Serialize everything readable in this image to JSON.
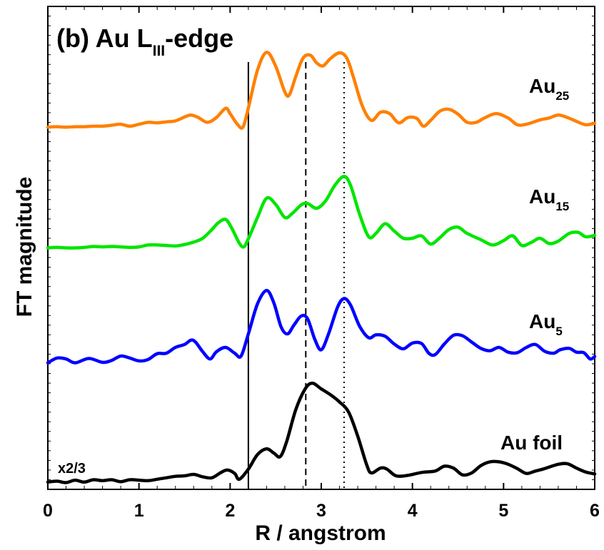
{
  "chart_data": {
    "type": "line",
    "title": {
      "main": "(b) Au L",
      "sub": "III",
      "tail": "-edge"
    },
    "xlabel": "R / angstrom",
    "ylabel": "FT magnitude",
    "xlim": [
      0,
      6
    ],
    "ylim": [
      0,
      1
    ],
    "x_ticks": [
      "0",
      "1",
      "2",
      "3",
      "4",
      "5",
      "6"
    ],
    "y_ticks_labeled": false,
    "grid": false,
    "legend": "none (series labeled on the right)",
    "reference_lines": [
      {
        "x": 2.2,
        "style": "solid"
      },
      {
        "x": 2.83,
        "style": "dashed"
      },
      {
        "x": 3.25,
        "style": "dotted"
      }
    ],
    "series": [
      {
        "name": "Au25",
        "label_main": "Au",
        "label_sub": "25",
        "color": "#ff8000",
        "points": [
          [
            0,
            0.75
          ],
          [
            0.1,
            0.751
          ],
          [
            0.2,
            0.75
          ],
          [
            0.3,
            0.751
          ],
          [
            0.4,
            0.751
          ],
          [
            0.5,
            0.752
          ],
          [
            0.6,
            0.752
          ],
          [
            0.7,
            0.754
          ],
          [
            0.8,
            0.756
          ],
          [
            0.9,
            0.752
          ],
          [
            1.0,
            0.756
          ],
          [
            1.1,
            0.76
          ],
          [
            1.2,
            0.759
          ],
          [
            1.3,
            0.761
          ],
          [
            1.4,
            0.763
          ],
          [
            1.5,
            0.771
          ],
          [
            1.57,
            0.775
          ],
          [
            1.65,
            0.77
          ],
          [
            1.75,
            0.76
          ],
          [
            1.85,
            0.77
          ],
          [
            1.95,
            0.789
          ],
          [
            2.0,
            0.778
          ],
          [
            2.08,
            0.756
          ],
          [
            2.14,
            0.75
          ],
          [
            2.2,
            0.79
          ],
          [
            2.3,
            0.868
          ],
          [
            2.4,
            0.905
          ],
          [
            2.5,
            0.876
          ],
          [
            2.6,
            0.823
          ],
          [
            2.65,
            0.817
          ],
          [
            2.72,
            0.855
          ],
          [
            2.8,
            0.893
          ],
          [
            2.88,
            0.899
          ],
          [
            2.95,
            0.883
          ],
          [
            3.02,
            0.877
          ],
          [
            3.1,
            0.892
          ],
          [
            3.2,
            0.904
          ],
          [
            3.28,
            0.893
          ],
          [
            3.35,
            0.855
          ],
          [
            3.45,
            0.794
          ],
          [
            3.55,
            0.764
          ],
          [
            3.65,
            0.781
          ],
          [
            3.75,
            0.778
          ],
          [
            3.85,
            0.759
          ],
          [
            3.95,
            0.77
          ],
          [
            4.05,
            0.768
          ],
          [
            4.12,
            0.752
          ],
          [
            4.2,
            0.764
          ],
          [
            4.3,
            0.783
          ],
          [
            4.4,
            0.787
          ],
          [
            4.5,
            0.777
          ],
          [
            4.6,
            0.76
          ],
          [
            4.7,
            0.76
          ],
          [
            4.8,
            0.77
          ],
          [
            4.92,
            0.778
          ],
          [
            5.05,
            0.769
          ],
          [
            5.15,
            0.755
          ],
          [
            5.25,
            0.756
          ],
          [
            5.4,
            0.765
          ],
          [
            5.5,
            0.769
          ],
          [
            5.6,
            0.775
          ],
          [
            5.7,
            0.77
          ],
          [
            5.8,
            0.762
          ],
          [
            5.9,
            0.755
          ],
          [
            6.0,
            0.758
          ]
        ]
      },
      {
        "name": "Au15",
        "label_main": "Au",
        "label_sub": "15",
        "color": "#00e600",
        "points": [
          [
            0,
            0.5
          ],
          [
            0.1,
            0.501
          ],
          [
            0.2,
            0.5
          ],
          [
            0.3,
            0.5
          ],
          [
            0.4,
            0.501
          ],
          [
            0.5,
            0.503
          ],
          [
            0.6,
            0.502
          ],
          [
            0.7,
            0.503
          ],
          [
            0.8,
            0.502
          ],
          [
            0.9,
            0.501
          ],
          [
            1.0,
            0.502
          ],
          [
            1.1,
            0.506
          ],
          [
            1.2,
            0.506
          ],
          [
            1.3,
            0.505
          ],
          [
            1.4,
            0.504
          ],
          [
            1.5,
            0.507
          ],
          [
            1.6,
            0.512
          ],
          [
            1.7,
            0.52
          ],
          [
            1.8,
            0.538
          ],
          [
            1.87,
            0.552
          ],
          [
            1.95,
            0.559
          ],
          [
            2.02,
            0.54
          ],
          [
            2.1,
            0.51
          ],
          [
            2.15,
            0.502
          ],
          [
            2.2,
            0.519
          ],
          [
            2.3,
            0.563
          ],
          [
            2.4,
            0.603
          ],
          [
            2.5,
            0.59
          ],
          [
            2.6,
            0.563
          ],
          [
            2.68,
            0.571
          ],
          [
            2.78,
            0.589
          ],
          [
            2.85,
            0.592
          ],
          [
            2.95,
            0.582
          ],
          [
            3.05,
            0.598
          ],
          [
            3.15,
            0.63
          ],
          [
            3.25,
            0.648
          ],
          [
            3.32,
            0.63
          ],
          [
            3.42,
            0.57
          ],
          [
            3.52,
            0.523
          ],
          [
            3.6,
            0.53
          ],
          [
            3.7,
            0.55
          ],
          [
            3.8,
            0.535
          ],
          [
            3.9,
            0.52
          ],
          [
            4.0,
            0.52
          ],
          [
            4.1,
            0.525
          ],
          [
            4.2,
            0.508
          ],
          [
            4.3,
            0.521
          ],
          [
            4.4,
            0.538
          ],
          [
            4.5,
            0.543
          ],
          [
            4.6,
            0.53
          ],
          [
            4.75,
            0.517
          ],
          [
            4.88,
            0.506
          ],
          [
            5.0,
            0.515
          ],
          [
            5.1,
            0.525
          ],
          [
            5.2,
            0.505
          ],
          [
            5.3,
            0.511
          ],
          [
            5.4,
            0.52
          ],
          [
            5.5,
            0.509
          ],
          [
            5.6,
            0.514
          ],
          [
            5.72,
            0.53
          ],
          [
            5.82,
            0.532
          ],
          [
            5.9,
            0.523
          ],
          [
            6.0,
            0.526
          ]
        ]
      },
      {
        "name": "Au5",
        "label_main": "Au",
        "label_sub": "5",
        "color": "#0000ff",
        "points": [
          [
            0,
            0.262
          ],
          [
            0.1,
            0.272
          ],
          [
            0.2,
            0.27
          ],
          [
            0.3,
            0.262
          ],
          [
            0.45,
            0.271
          ],
          [
            0.6,
            0.263
          ],
          [
            0.7,
            0.267
          ],
          [
            0.8,
            0.276
          ],
          [
            0.9,
            0.272
          ],
          [
            1.0,
            0.266
          ],
          [
            1.1,
            0.269
          ],
          [
            1.2,
            0.281
          ],
          [
            1.3,
            0.282
          ],
          [
            1.4,
            0.294
          ],
          [
            1.5,
            0.3
          ],
          [
            1.57,
            0.309
          ],
          [
            1.62,
            0.305
          ],
          [
            1.7,
            0.285
          ],
          [
            1.78,
            0.27
          ],
          [
            1.85,
            0.285
          ],
          [
            1.95,
            0.294
          ],
          [
            2.05,
            0.282
          ],
          [
            2.12,
            0.276
          ],
          [
            2.2,
            0.322
          ],
          [
            2.3,
            0.384
          ],
          [
            2.4,
            0.412
          ],
          [
            2.48,
            0.386
          ],
          [
            2.56,
            0.336
          ],
          [
            2.63,
            0.322
          ],
          [
            2.7,
            0.34
          ],
          [
            2.78,
            0.359
          ],
          [
            2.85,
            0.353
          ],
          [
            2.93,
            0.31
          ],
          [
            3.0,
            0.289
          ],
          [
            3.08,
            0.322
          ],
          [
            3.18,
            0.378
          ],
          [
            3.25,
            0.395
          ],
          [
            3.32,
            0.382
          ],
          [
            3.42,
            0.338
          ],
          [
            3.52,
            0.314
          ],
          [
            3.6,
            0.32
          ],
          [
            3.7,
            0.317
          ],
          [
            3.8,
            0.301
          ],
          [
            3.9,
            0.291
          ],
          [
            4.0,
            0.303
          ],
          [
            4.1,
            0.302
          ],
          [
            4.18,
            0.282
          ],
          [
            4.25,
            0.279
          ],
          [
            4.35,
            0.301
          ],
          [
            4.45,
            0.319
          ],
          [
            4.55,
            0.318
          ],
          [
            4.65,
            0.305
          ],
          [
            4.75,
            0.292
          ],
          [
            4.85,
            0.287
          ],
          [
            4.95,
            0.294
          ],
          [
            5.05,
            0.284
          ],
          [
            5.15,
            0.283
          ],
          [
            5.25,
            0.294
          ],
          [
            5.35,
            0.3
          ],
          [
            5.45,
            0.286
          ],
          [
            5.55,
            0.282
          ],
          [
            5.62,
            0.289
          ],
          [
            5.72,
            0.292
          ],
          [
            5.8,
            0.284
          ],
          [
            5.88,
            0.283
          ],
          [
            5.95,
            0.27
          ],
          [
            6.0,
            0.275
          ]
        ]
      },
      {
        "name": "Au foil",
        "label_main": "Au foil",
        "label_sub": "",
        "color": "#000000",
        "scale_note": "x2/3",
        "points": [
          [
            0,
            0.015
          ],
          [
            0.1,
            0.017
          ],
          [
            0.2,
            0.014
          ],
          [
            0.3,
            0.019
          ],
          [
            0.4,
            0.015
          ],
          [
            0.5,
            0.02
          ],
          [
            0.6,
            0.018
          ],
          [
            0.7,
            0.02
          ],
          [
            0.8,
            0.016
          ],
          [
            0.9,
            0.02
          ],
          [
            1.0,
            0.019
          ],
          [
            1.1,
            0.018
          ],
          [
            1.2,
            0.021
          ],
          [
            1.3,
            0.024
          ],
          [
            1.4,
            0.027
          ],
          [
            1.5,
            0.028
          ],
          [
            1.6,
            0.031
          ],
          [
            1.7,
            0.026
          ],
          [
            1.8,
            0.024
          ],
          [
            1.9,
            0.035
          ],
          [
            1.97,
            0.04
          ],
          [
            2.05,
            0.033
          ],
          [
            2.1,
            0.021
          ],
          [
            2.2,
            0.042
          ],
          [
            2.3,
            0.072
          ],
          [
            2.4,
            0.084
          ],
          [
            2.48,
            0.075
          ],
          [
            2.55,
            0.068
          ],
          [
            2.62,
            0.099
          ],
          [
            2.72,
            0.165
          ],
          [
            2.82,
            0.207
          ],
          [
            2.9,
            0.22
          ],
          [
            3.0,
            0.208
          ],
          [
            3.1,
            0.196
          ],
          [
            3.2,
            0.181
          ],
          [
            3.3,
            0.16
          ],
          [
            3.4,
            0.11
          ],
          [
            3.5,
            0.05
          ],
          [
            3.55,
            0.034
          ],
          [
            3.65,
            0.044
          ],
          [
            3.72,
            0.042
          ],
          [
            3.82,
            0.028
          ],
          [
            3.95,
            0.029
          ],
          [
            4.1,
            0.035
          ],
          [
            4.25,
            0.038
          ],
          [
            4.35,
            0.048
          ],
          [
            4.45,
            0.044
          ],
          [
            4.55,
            0.03
          ],
          [
            4.65,
            0.034
          ],
          [
            4.75,
            0.049
          ],
          [
            4.85,
            0.057
          ],
          [
            4.95,
            0.057
          ],
          [
            5.05,
            0.052
          ],
          [
            5.15,
            0.043
          ],
          [
            5.25,
            0.033
          ],
          [
            5.35,
            0.038
          ],
          [
            5.45,
            0.043
          ],
          [
            5.6,
            0.052
          ],
          [
            5.7,
            0.053
          ],
          [
            5.8,
            0.044
          ],
          [
            5.9,
            0.036
          ],
          [
            6.0,
            0.032
          ]
        ]
      }
    ]
  }
}
